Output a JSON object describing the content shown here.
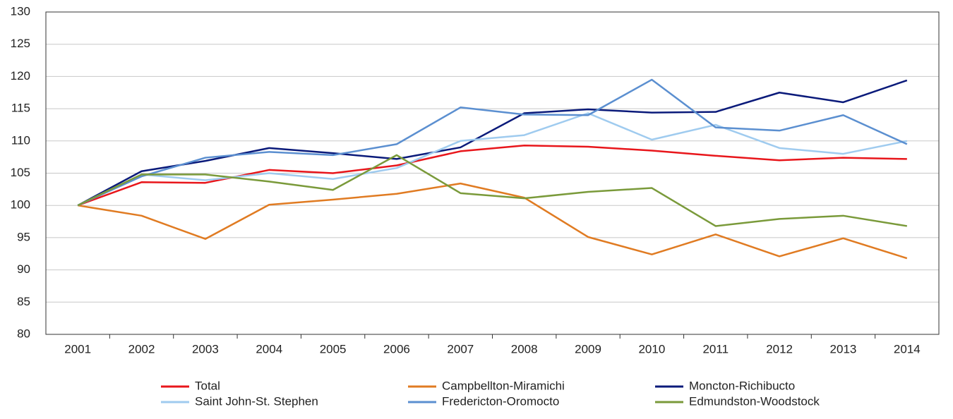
{
  "chart_data": {
    "type": "line",
    "categories": [
      "2001",
      "2002",
      "2003",
      "2004",
      "2005",
      "2006",
      "2007",
      "2008",
      "2009",
      "2010",
      "2011",
      "2012",
      "2013",
      "2014"
    ],
    "ylim": [
      80,
      130
    ],
    "yticks": [
      80,
      85,
      90,
      95,
      100,
      105,
      110,
      115,
      120,
      125,
      130
    ],
    "grid": true,
    "series": [
      {
        "name": "Total",
        "color": "#e8161b",
        "values": [
          100,
          103.6,
          103.5,
          105.5,
          105,
          106.2,
          108.4,
          109.3,
          109.1,
          108.5,
          107.7,
          107,
          107.4,
          107.2
        ]
      },
      {
        "name": "Campbellton-Miramichi",
        "color": "#e07b22",
        "values": [
          100,
          98.4,
          94.8,
          100.1,
          100.9,
          101.8,
          103.4,
          101.2,
          95.1,
          92.4,
          95.5,
          92.1,
          94.9,
          91.8
        ]
      },
      {
        "name": "Moncton-Richibucto",
        "color": "#0a1a7a",
        "values": [
          100,
          105.3,
          106.9,
          108.9,
          108.1,
          107.2,
          109,
          114.3,
          114.9,
          114.4,
          114.5,
          117.5,
          116,
          119.4
        ]
      },
      {
        "name": "Saint John-St. Stephen",
        "color": "#9fcbef",
        "values": [
          100,
          104.8,
          103.9,
          105,
          104.1,
          105.8,
          110,
          110.9,
          114.3,
          110.2,
          112.5,
          108.9,
          108,
          110
        ]
      },
      {
        "name": "Fredericton-Oromocto",
        "color": "#5b8fd0",
        "values": [
          100,
          104.5,
          107.4,
          108.3,
          107.8,
          109.5,
          115.2,
          114.1,
          114,
          119.5,
          112.1,
          111.6,
          114,
          109.5
        ]
      },
      {
        "name": "Edmundston-Woodstock",
        "color": "#7a9a3a",
        "values": [
          100,
          104.8,
          104.8,
          103.7,
          102.4,
          107.8,
          101.9,
          101.1,
          102.1,
          102.7,
          96.8,
          97.9,
          98.4,
          96.8
        ]
      }
    ]
  }
}
